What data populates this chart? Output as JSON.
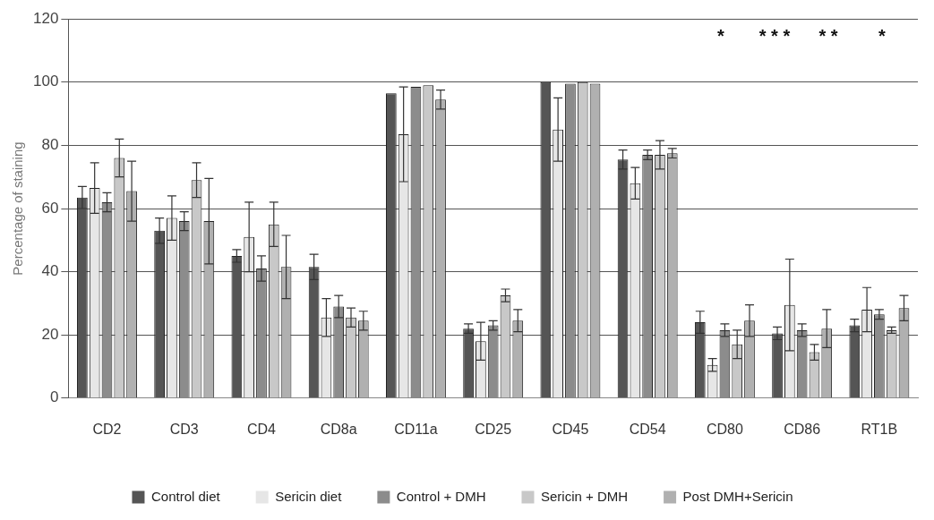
{
  "chart_data": {
    "type": "bar",
    "ylabel": "Percentage of staining",
    "categories": [
      "CD2",
      "CD3",
      "CD4",
      "CD8a",
      "CD11a",
      "CD25",
      "CD45",
      "CD54",
      "CD80",
      "CD86",
      "RT1B"
    ],
    "series": [
      {
        "name": "Control diet",
        "color": "#555555",
        "values": [
          63.5,
          53,
          45,
          41.5,
          96.5,
          22,
          100,
          75.5,
          24,
          20.5,
          23
        ],
        "errors": [
          3.5,
          4,
          2,
          4,
          null,
          1.5,
          null,
          3,
          3.5,
          2,
          2
        ]
      },
      {
        "name": "Sericin diet",
        "color": "#e6e6e6",
        "values": [
          66.5,
          57,
          51,
          25.5,
          83.5,
          18,
          85,
          68,
          10.5,
          29.5,
          28
        ],
        "errors": [
          8,
          7,
          11,
          6,
          15,
          6,
          10,
          5,
          2,
          14.5,
          7
        ]
      },
      {
        "name": "Control + DMH",
        "color": "#8c8c8c",
        "values": [
          62,
          56,
          41,
          29,
          98.5,
          23,
          99.5,
          77,
          21.5,
          21.5,
          26.5
        ],
        "errors": [
          3,
          3,
          4,
          3.5,
          null,
          1.5,
          null,
          1.5,
          2,
          2,
          1.5
        ]
      },
      {
        "name": "Sericin + DMH",
        "color": "#c8c8c8",
        "values": [
          76,
          69,
          55,
          25.5,
          99,
          32.5,
          100,
          77,
          17,
          14.5,
          21.5
        ],
        "errors": [
          6,
          5.5,
          7,
          3,
          null,
          2,
          null,
          4.5,
          4.5,
          2.5,
          1
        ]
      },
      {
        "name": "Post DMH+Sericin",
        "color": "#b0b0b0",
        "values": [
          65.5,
          56,
          41.5,
          24.5,
          94.5,
          24.5,
          99.5,
          77.5,
          24.5,
          22,
          28.5
        ],
        "errors": [
          9.5,
          13.5,
          10,
          3,
          3,
          3.5,
          null,
          1.5,
          5,
          6,
          4
        ]
      }
    ],
    "ylim": [
      0,
      120
    ],
    "yticks": [
      0,
      20,
      40,
      60,
      80,
      100,
      120
    ],
    "grid": "y",
    "legend": "bottom",
    "annotations": [
      "*",
      "* * *",
      "* *",
      "*"
    ]
  }
}
